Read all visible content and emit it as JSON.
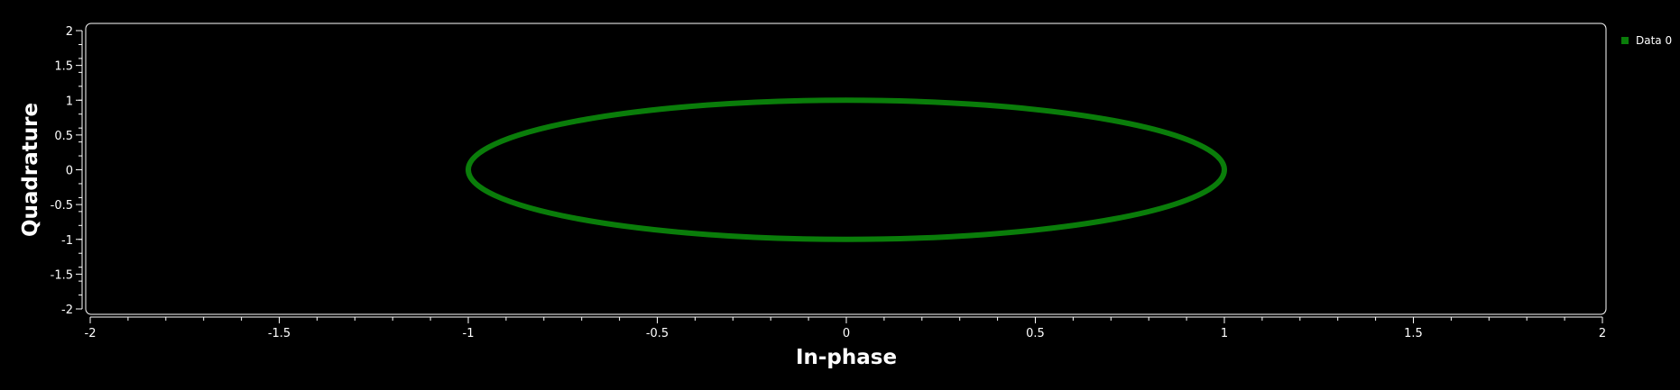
{
  "chart_data": {
    "type": "scatter",
    "title": "",
    "xlabel": "In-phase",
    "ylabel": "Quadrature",
    "xlim": [
      -2,
      2
    ],
    "ylim": [
      -2,
      2
    ],
    "x_ticks": [
      "-2",
      "-1.5",
      "-1",
      "-0.5",
      "0",
      "0.5",
      "1",
      "1.5",
      "2"
    ],
    "y_ticks": [
      "2",
      "1.5",
      "1",
      "0.5",
      "0",
      "-0.5",
      "-1",
      "-1.5",
      "-2"
    ],
    "grid": false,
    "legend_position": "top-right",
    "series": [
      {
        "name": "Data 0",
        "color": "#0a7d0a",
        "shape": "ellipse",
        "x_radius": 1,
        "y_radius": 1,
        "center": [
          0,
          0
        ]
      }
    ]
  },
  "colors": {
    "background": "#000000",
    "axis": "#ffffff",
    "series0": "#0a7d0a"
  }
}
